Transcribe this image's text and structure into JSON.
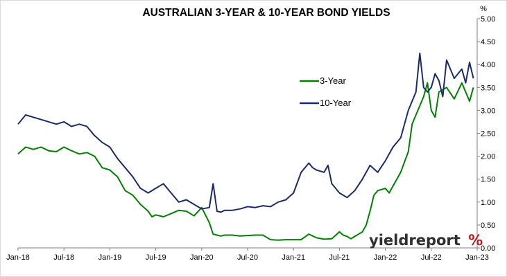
{
  "chart_data": {
    "type": "line",
    "title": "AUSTRALIAN 3-YEAR & 10-YEAR BOND YIELDS",
    "y_unit_label": "%",
    "ylim": [
      0,
      5
    ],
    "y_ticks": [
      "0.00",
      "0.50",
      "1.00",
      "1.50",
      "2.00",
      "2.50",
      "3.00",
      "3.50",
      "4.00",
      "4.50",
      "5.00"
    ],
    "x_ticks": [
      "Jan-18",
      "Jul-18",
      "Jan-19",
      "Jul-19",
      "Jan-20",
      "Jul-20",
      "Jan-21",
      "Jul-21",
      "Jan-22",
      "Jul-22",
      "Jan-23"
    ],
    "xlim": [
      0,
      60
    ],
    "grid": false,
    "legend_position": "center-right",
    "series": [
      {
        "name": "3-Year",
        "color": "#008000",
        "x": [
          0,
          1,
          2,
          3,
          4,
          5,
          6,
          7,
          8,
          9,
          10,
          11,
          12,
          13,
          14,
          15,
          16,
          17,
          17.5,
          18,
          19,
          20,
          21,
          22,
          23,
          24,
          25,
          25.5,
          26,
          26.5,
          27,
          28,
          29,
          30,
          31,
          32,
          33,
          34,
          35,
          36,
          37,
          38,
          39,
          40,
          41,
          42,
          42.5,
          43,
          43.5,
          44,
          45,
          45.5,
          46,
          46.5,
          47,
          48,
          48.5,
          49,
          50,
          51,
          51.5,
          52,
          53,
          53.5,
          54,
          54.5,
          55,
          56,
          57,
          58,
          58.5,
          59,
          59.5
        ],
        "y": [
          2.05,
          2.2,
          2.15,
          2.2,
          2.12,
          2.1,
          2.2,
          2.12,
          2.05,
          2.08,
          2.0,
          1.75,
          1.7,
          1.55,
          1.25,
          1.15,
          0.95,
          0.8,
          0.68,
          0.72,
          0.68,
          0.75,
          0.82,
          0.8,
          0.7,
          0.88,
          0.55,
          0.3,
          0.28,
          0.26,
          0.28,
          0.28,
          0.26,
          0.27,
          0.28,
          0.28,
          0.18,
          0.17,
          0.18,
          0.18,
          0.18,
          0.3,
          0.22,
          0.19,
          0.2,
          0.35,
          0.28,
          0.25,
          0.2,
          0.25,
          0.35,
          0.5,
          0.8,
          1.15,
          1.25,
          1.3,
          1.2,
          1.35,
          1.65,
          2.1,
          2.7,
          2.9,
          3.3,
          3.6,
          3.0,
          2.85,
          3.4,
          3.5,
          3.25,
          3.6,
          3.4,
          3.2,
          3.5
        ]
      },
      {
        "name": "10-Year",
        "color": "#1b2a6b",
        "x": [
          0,
          1,
          2,
          3,
          4,
          5,
          6,
          7,
          8,
          9,
          10,
          11,
          12,
          13,
          14,
          15,
          16,
          17,
          18,
          19,
          20,
          21,
          22,
          23,
          24,
          25,
          25.5,
          26,
          26.5,
          27,
          28,
          29,
          30,
          31,
          32,
          33,
          34,
          35,
          36,
          37,
          38,
          38.5,
          39,
          40,
          40.5,
          41,
          42,
          43,
          44,
          45,
          46,
          47,
          48,
          49,
          49.5,
          50,
          51,
          52,
          52.5,
          53,
          53.5,
          54,
          54.5,
          55,
          55.5,
          56,
          57,
          58,
          58.5,
          59,
          59.5
        ],
        "y": [
          2.7,
          2.9,
          2.85,
          2.8,
          2.75,
          2.7,
          2.75,
          2.65,
          2.7,
          2.65,
          2.45,
          2.3,
          2.2,
          1.95,
          1.75,
          1.55,
          1.3,
          1.2,
          1.3,
          1.4,
          1.2,
          1.0,
          1.05,
          0.95,
          0.85,
          0.88,
          1.4,
          0.8,
          0.78,
          0.82,
          0.82,
          0.85,
          0.9,
          0.88,
          0.92,
          0.9,
          1.0,
          1.05,
          1.2,
          1.65,
          1.85,
          1.75,
          1.7,
          1.65,
          1.8,
          1.4,
          1.2,
          1.1,
          1.25,
          1.5,
          1.8,
          1.65,
          1.9,
          2.2,
          2.3,
          2.4,
          3.0,
          3.4,
          4.25,
          3.5,
          3.4,
          3.5,
          3.8,
          3.65,
          3.3,
          4.1,
          3.7,
          3.9,
          3.6,
          4.05,
          3.7
        ]
      }
    ]
  },
  "brand": {
    "text_main": "yieldreport",
    "symbol": "%",
    "color_text": "#2f2f2f",
    "color_symbol": "#b71c1c"
  }
}
